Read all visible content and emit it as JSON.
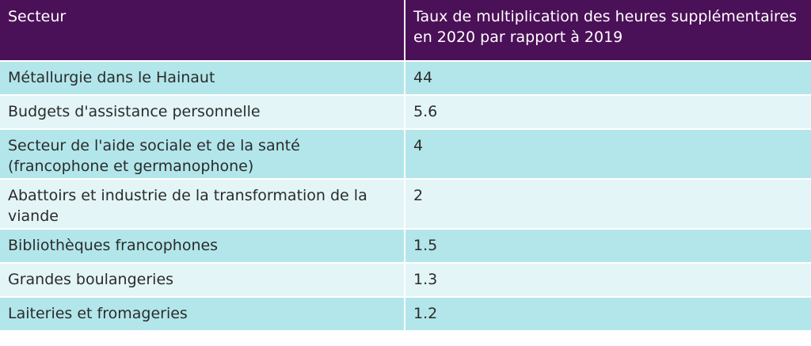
{
  "table": {
    "headers": [
      "Secteur",
      "Taux de multiplication des heures supplémentaires en 2020 par rapport à 2019"
    ],
    "rows": [
      [
        "Métallurgie dans le Hainaut",
        "44"
      ],
      [
        "Budgets d'assistance personnelle",
        "5.6"
      ],
      [
        "Secteur de l'aide sociale et de la santé (francophone et germanophone)",
        "4"
      ],
      [
        "Abattoirs et industrie de la transformation de la viande",
        "2"
      ],
      [
        "Bibliothèques francophones",
        "1.5"
      ],
      [
        "Grandes boulangeries",
        "1.3"
      ],
      [
        "Laiteries et fromageries",
        "1.2"
      ]
    ]
  },
  "colors": {
    "header_bg": "#4b1158",
    "row_dark": "#b2e6ea",
    "row_light": "#e3f5f7"
  }
}
